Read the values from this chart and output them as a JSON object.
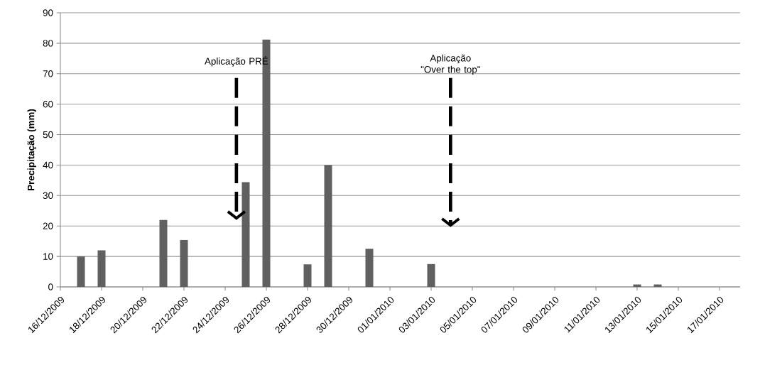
{
  "chart_data": {
    "type": "bar",
    "ylabel": "Precipitação (mm)",
    "x": [
      "2009-12-17",
      "2009-12-18",
      "2009-12-21",
      "2009-12-22",
      "2009-12-25",
      "2009-12-26",
      "2009-12-28",
      "2009-12-29",
      "2009-12-31",
      "2010-01-03",
      "2010-01-08",
      "2010-01-13",
      "2010-01-14"
    ],
    "values": [
      10,
      12,
      22,
      15.4,
      34.4,
      81.2,
      7.4,
      40,
      12.5,
      7.5,
      null,
      0.8,
      0.8
    ],
    "color": "#606060",
    "xlim": [
      "2009-12-16",
      "2010-01-18"
    ],
    "xticks": [
      {
        "value": "2009-12-16",
        "label": "16/12/2009"
      },
      {
        "value": "2009-12-18",
        "label": "18/12/2009"
      },
      {
        "value": "2009-12-20",
        "label": "20/12/2009"
      },
      {
        "value": "2009-12-22",
        "label": "22/12/2009"
      },
      {
        "value": "2009-12-24",
        "label": "24/12/2009"
      },
      {
        "value": "2009-12-26",
        "label": "26/12/2009"
      },
      {
        "value": "2009-12-28",
        "label": "28/12/2009"
      },
      {
        "value": "2009-12-30",
        "label": "30/12/2009"
      },
      {
        "value": "2010-01-01",
        "label": "01/01/2010"
      },
      {
        "value": "2010-01-03",
        "label": "03/01/2010"
      },
      {
        "value": "2010-01-05",
        "label": "05/01/2010"
      },
      {
        "value": "2010-01-07",
        "label": "07/01/2010"
      },
      {
        "value": "2010-01-09",
        "label": "09/01/2010"
      },
      {
        "value": "2010-01-11",
        "label": "11/01/2010"
      },
      {
        "value": "2010-01-13",
        "label": "13/01/2010"
      },
      {
        "value": "2010-01-15",
        "label": "15/01/2010"
      },
      {
        "value": "2010-01-17",
        "label": "17/01/2010"
      }
    ],
    "ylim": [
      0,
      90
    ],
    "yticks": [
      0,
      10,
      20,
      30,
      40,
      50,
      60,
      70,
      80,
      90
    ],
    "grid": "y",
    "annotations": [
      "Aplicação PRÉ",
      "Aplicação \"Over the top\""
    ]
  }
}
